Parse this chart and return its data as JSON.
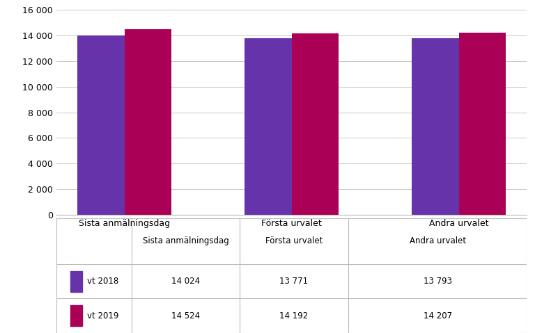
{
  "categories": [
    "Sista anmälningsdag",
    "Första urvalet",
    "Andra urvalet"
  ],
  "series": [
    {
      "label": "vt 2018",
      "values": [
        14024,
        13771,
        13793
      ],
      "color": "#6633AA"
    },
    {
      "label": "vt 2019",
      "values": [
        14524,
        14192,
        14207
      ],
      "color": "#AA0055"
    }
  ],
  "ylim": [
    0,
    16000
  ],
  "yticks": [
    0,
    2000,
    4000,
    6000,
    8000,
    10000,
    12000,
    14000,
    16000
  ],
  "ytick_labels": [
    "0",
    "2 000",
    "4 000",
    "6 000",
    "8 000",
    "10 000",
    "12 000",
    "14 000",
    "16 000"
  ],
  "table_header": [
    "",
    "Sista anmälningsdag",
    "Första urvalet",
    "Andra urvalet"
  ],
  "table_rows": [
    [
      "vt 2018",
      "14 024",
      "13 771",
      "13 793"
    ],
    [
      "vt 2019",
      "14 524",
      "14 192",
      "14 207"
    ]
  ],
  "background_color": "#ffffff",
  "grid_color": "#c8c8c8"
}
